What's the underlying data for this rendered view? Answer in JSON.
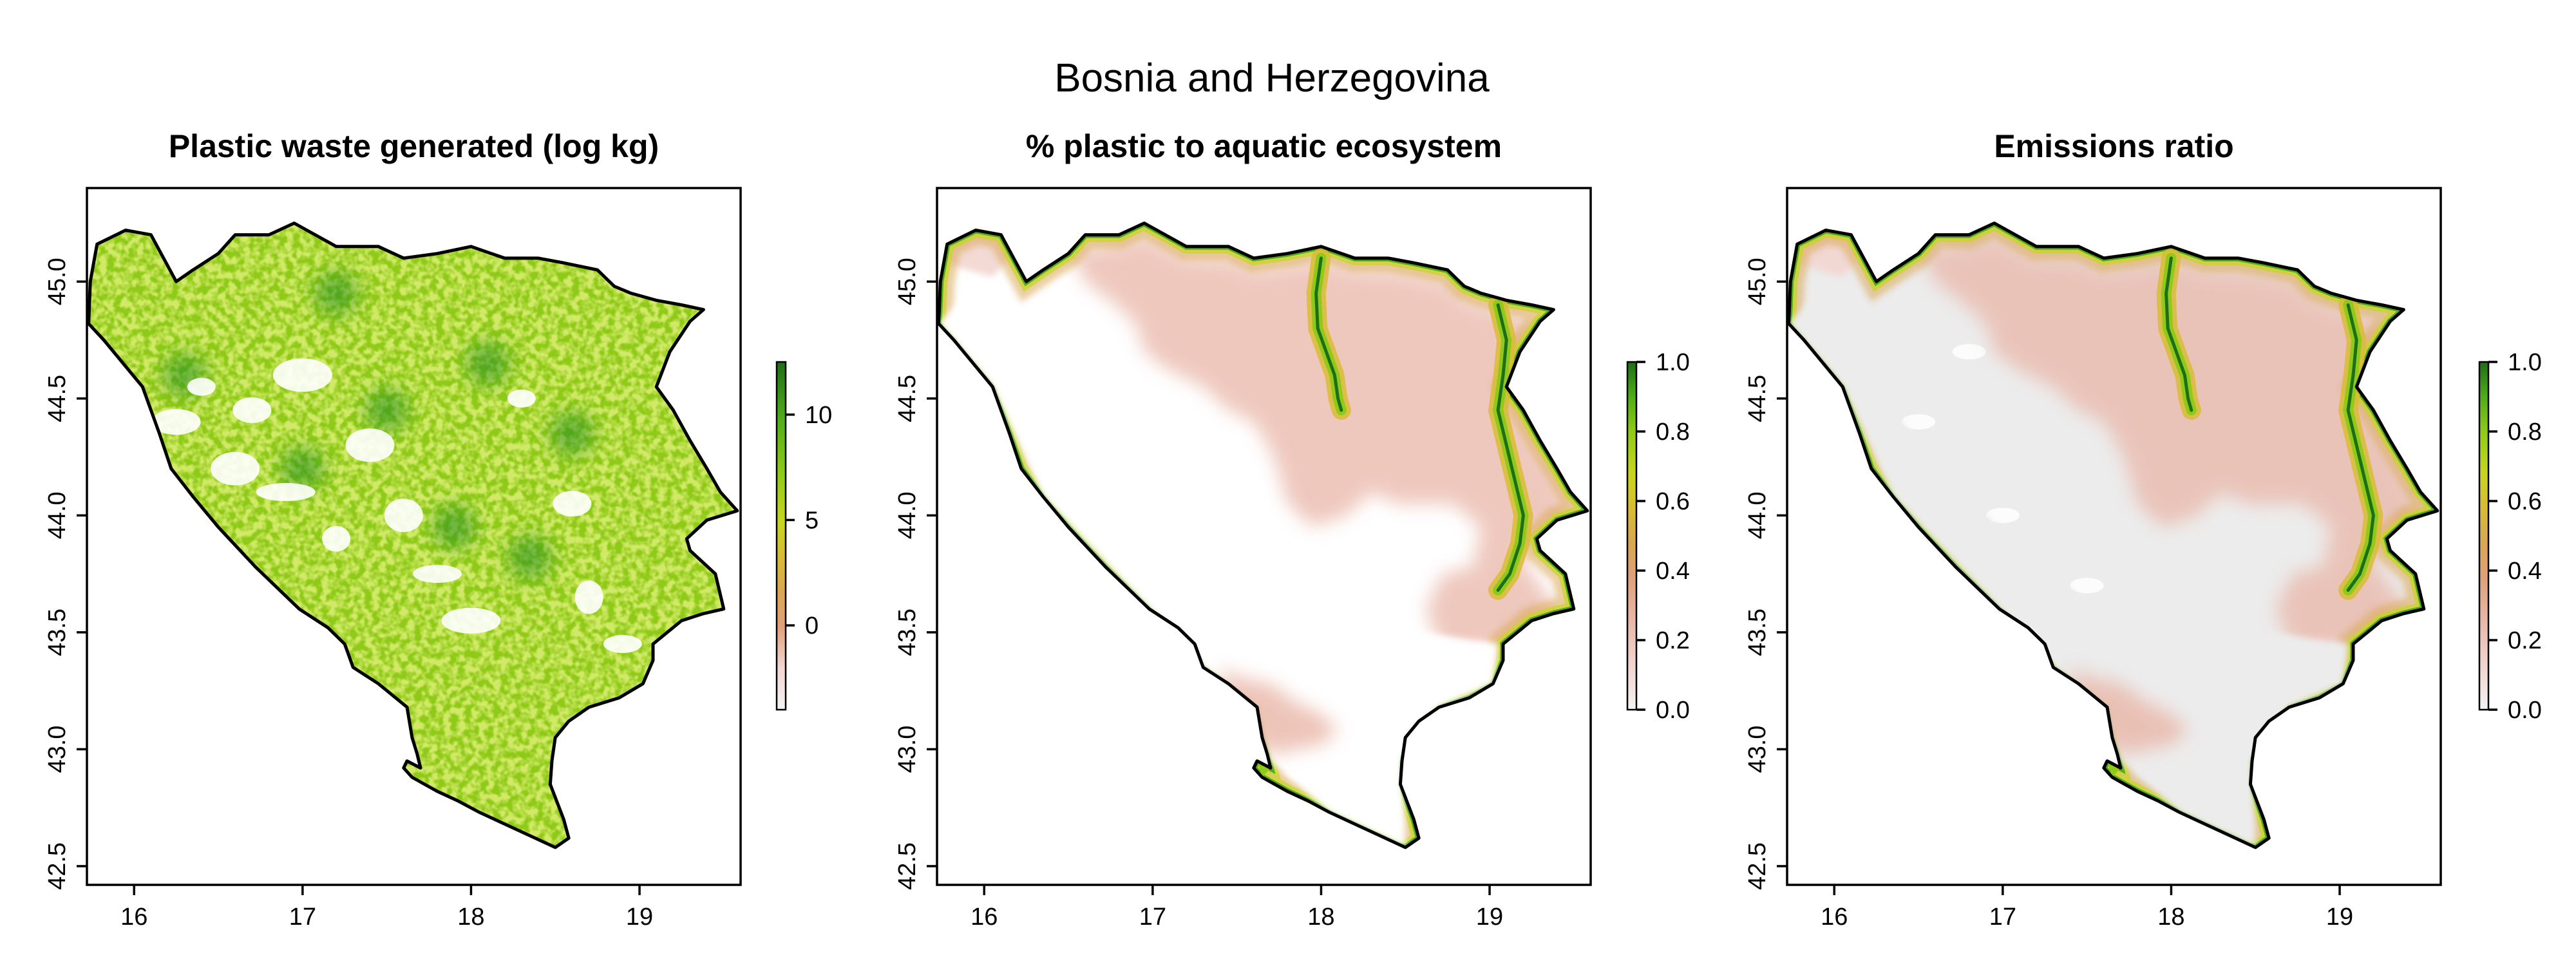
{
  "figure": {
    "title": "Bosnia and Herzegovina"
  },
  "palette": {
    "colors": [
      "#f3f3f3",
      "#f2d6d1",
      "#e9b6a7",
      "#e0a07a",
      "#d9a752",
      "#d8bc35",
      "#c8d51f",
      "#8fca18",
      "#4fac18",
      "#1f8a1b",
      "#1e6e17"
    ],
    "no_data": "#ffffff",
    "zero_fill": "#ececec",
    "border": "#000000"
  },
  "axes": {
    "x_range": [
      15.72,
      19.6
    ],
    "y_range": [
      42.42,
      45.4
    ],
    "x_ticks": [
      "16",
      "17",
      "18",
      "19"
    ],
    "y_ticks": [
      "42.5",
      "43.0",
      "43.5",
      "44.0",
      "44.5",
      "45.0"
    ]
  },
  "panels": [
    {
      "title": "Plastic waste generated (log kg)",
      "legend": {
        "range": [
          -4,
          12.5
        ],
        "ticks": [
          "0",
          "5",
          "10"
        ]
      }
    },
    {
      "title": "% plastic to aquatic ecosystem",
      "legend": {
        "range": [
          0,
          1
        ],
        "ticks": [
          "0.0",
          "0.2",
          "0.4",
          "0.6",
          "0.8",
          "1.0"
        ]
      }
    },
    {
      "title": "Emissions ratio",
      "legend": {
        "range": [
          0,
          1
        ],
        "ticks": [
          "0.0",
          "0.2",
          "0.4",
          "0.6",
          "0.8",
          "1.0"
        ]
      }
    }
  ],
  "map_features": {
    "country": "Bosnia and Herzegovina",
    "border_outline": [
      [
        15.73,
        44.82
      ],
      [
        15.82,
        44.75
      ],
      [
        16.05,
        44.55
      ],
      [
        16.15,
        44.35
      ],
      [
        16.22,
        44.2
      ],
      [
        16.35,
        44.08
      ],
      [
        16.5,
        43.95
      ],
      [
        16.72,
        43.78
      ],
      [
        16.98,
        43.6
      ],
      [
        17.15,
        43.52
      ],
      [
        17.25,
        43.45
      ],
      [
        17.3,
        43.35
      ],
      [
        17.45,
        43.28
      ],
      [
        17.62,
        43.18
      ],
      [
        17.65,
        43.05
      ],
      [
        17.68,
        42.98
      ],
      [
        17.7,
        42.92
      ],
      [
        17.62,
        42.95
      ],
      [
        17.6,
        42.92
      ],
      [
        17.65,
        42.88
      ],
      [
        17.8,
        42.82
      ],
      [
        17.92,
        42.78
      ],
      [
        18.05,
        42.73
      ],
      [
        18.2,
        42.68
      ],
      [
        18.38,
        42.62
      ],
      [
        18.5,
        42.58
      ],
      [
        18.58,
        42.62
      ],
      [
        18.55,
        42.7
      ],
      [
        18.47,
        42.85
      ],
      [
        18.48,
        42.95
      ],
      [
        18.5,
        43.05
      ],
      [
        18.58,
        43.12
      ],
      [
        18.7,
        43.18
      ],
      [
        18.88,
        43.22
      ],
      [
        19.02,
        43.28
      ],
      [
        19.08,
        43.38
      ],
      [
        19.08,
        43.45
      ],
      [
        19.25,
        43.55
      ],
      [
        19.38,
        43.58
      ],
      [
        19.5,
        43.6
      ],
      [
        19.45,
        43.75
      ],
      [
        19.3,
        43.85
      ],
      [
        19.28,
        43.9
      ],
      [
        19.4,
        43.98
      ],
      [
        19.58,
        44.02
      ],
      [
        19.48,
        44.1
      ],
      [
        19.4,
        44.2
      ],
      [
        19.3,
        44.32
      ],
      [
        19.2,
        44.45
      ],
      [
        19.1,
        44.55
      ],
      [
        19.18,
        44.7
      ],
      [
        19.3,
        44.83
      ],
      [
        19.38,
        44.88
      ],
      [
        19.25,
        44.9
      ],
      [
        19.1,
        44.92
      ],
      [
        18.95,
        44.95
      ],
      [
        18.85,
        44.98
      ],
      [
        18.75,
        45.05
      ],
      [
        18.55,
        45.08
      ],
      [
        18.4,
        45.1
      ],
      [
        18.2,
        45.1
      ],
      [
        18.0,
        45.15
      ],
      [
        17.8,
        45.12
      ],
      [
        17.6,
        45.1
      ],
      [
        17.45,
        45.15
      ],
      [
        17.2,
        45.15
      ],
      [
        16.95,
        45.25
      ],
      [
        16.8,
        45.2
      ],
      [
        16.6,
        45.2
      ],
      [
        16.5,
        45.12
      ],
      [
        16.35,
        45.05
      ],
      [
        16.25,
        45.0
      ],
      [
        16.1,
        45.2
      ],
      [
        15.95,
        45.22
      ],
      [
        15.78,
        45.16
      ],
      [
        15.74,
        45.0
      ]
    ]
  }
}
